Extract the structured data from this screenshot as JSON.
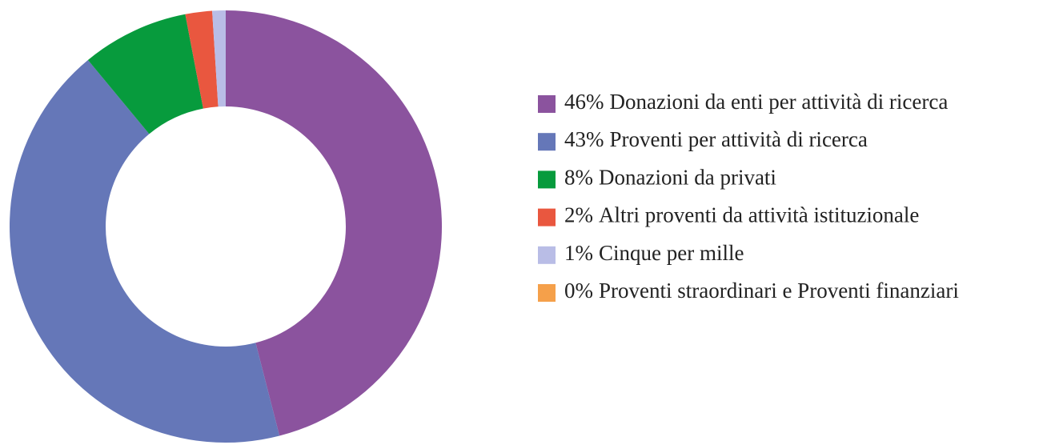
{
  "chart_data": {
    "type": "donut",
    "categories": [
      "Donazioni da enti per attività di ricerca",
      "Proventi per attività di ricerca",
      "Donazioni da privati",
      "Altri proventi da attività istituzionale",
      "Cinque per mille",
      "Proventi straordinari e Proventi finanziari"
    ],
    "values": [
      46,
      43,
      8,
      2,
      1,
      0
    ],
    "value_labels": [
      "46%",
      "43%",
      "8%",
      "2%",
      "1%",
      "0%"
    ],
    "colors": [
      "#8b539e",
      "#6577b8",
      "#079b3d",
      "#e9573f",
      "#b9bde6",
      "#f5a04a"
    ],
    "legend": "right"
  }
}
